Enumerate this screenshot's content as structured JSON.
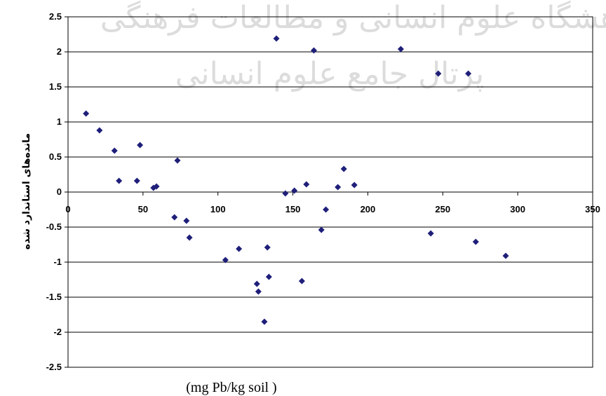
{
  "chart_data": {
    "type": "scatter",
    "title": "",
    "xlabel": "(mg Pb/kg soil )",
    "ylabel": "مانده‌های استاندارد شده",
    "xlim": [
      0,
      350
    ],
    "ylim": [
      -2.5,
      2.5
    ],
    "x_ticks": [
      "0",
      "50",
      "100",
      "150",
      "200",
      "250",
      "300",
      "350"
    ],
    "y_ticks": [
      "2.5",
      "2",
      "1.5",
      "1",
      "0.5",
      "0",
      "-0.5",
      "-1",
      "-1.5",
      "-2",
      "-2.5"
    ],
    "grid": "horizontal",
    "marker": "diamond",
    "marker_color": "#1f1f7a",
    "watermark": [
      "پژوهشگاه علوم انسانی و مطالعات فرهنگی",
      "پرتال جامع علوم انسانی"
    ],
    "series": [
      {
        "points": [
          [
            12,
            1.12
          ],
          [
            21,
            0.88
          ],
          [
            31,
            0.59
          ],
          [
            34,
            0.16
          ],
          [
            46,
            0.16
          ],
          [
            48,
            0.67
          ],
          [
            57,
            0.06
          ],
          [
            59,
            0.08
          ],
          [
            71,
            -0.36
          ],
          [
            73,
            0.45
          ],
          [
            79,
            -0.41
          ],
          [
            81,
            -0.65
          ],
          [
            105,
            -0.97
          ],
          [
            114,
            -0.81
          ],
          [
            126,
            -1.31
          ],
          [
            127,
            -1.42
          ],
          [
            131,
            -1.85
          ],
          [
            133,
            -0.79
          ],
          [
            134,
            -1.21
          ],
          [
            139,
            2.19
          ],
          [
            145,
            -0.02
          ],
          [
            151,
            0.02
          ],
          [
            156,
            -1.27
          ],
          [
            159,
            0.11
          ],
          [
            164,
            2.02
          ],
          [
            169,
            -0.54
          ],
          [
            172,
            -0.25
          ],
          [
            180,
            0.07
          ],
          [
            184,
            0.33
          ],
          [
            191,
            0.1
          ],
          [
            222,
            2.04
          ],
          [
            242,
            -0.59
          ],
          [
            247,
            1.69
          ],
          [
            267,
            1.69
          ],
          [
            272,
            -0.71
          ],
          [
            292,
            -0.91
          ]
        ]
      }
    ]
  }
}
